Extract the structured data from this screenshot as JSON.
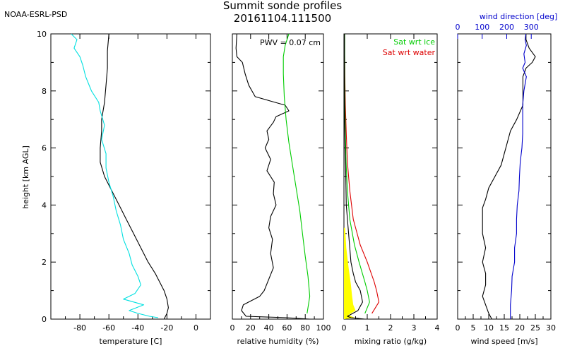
{
  "header": {
    "org": "NOAA-ESRL-PSD",
    "title_line1": "Summit sonde profiles",
    "title_line2": "20161104.111500"
  },
  "colors": {
    "axis": "#000000",
    "temperature": "#000000",
    "dewpoint": "#00e0e0",
    "rh": "#000000",
    "rh_ice": "#00cc00",
    "sat_ice": "#00cc00",
    "sat_water": "#dd0000",
    "mixing_ratio": "#000000",
    "ice_band": "#ffff00",
    "wind_speed": "#000000",
    "wind_direction": "#0000cc"
  },
  "chart_data": [
    {
      "type": "line",
      "panel": "temperature",
      "xlabel": "temperature [C]",
      "ylabel": "height [km AGL]",
      "xlim": [
        -100,
        10
      ],
      "ylim": [
        0,
        10
      ],
      "xticks": [
        -80,
        -60,
        -40,
        -20,
        0
      ],
      "yticks": [
        0,
        2,
        4,
        6,
        8,
        10
      ],
      "series": [
        {
          "name": "temperature",
          "x": [
            -22,
            -20,
            -19,
            -20,
            -22,
            -25,
            -28,
            -33,
            -38,
            -43,
            -48,
            -53,
            -58,
            -63,
            -66,
            -66,
            -65,
            -65,
            -63,
            -62,
            -61,
            -61,
            -60
          ],
          "y": [
            0,
            0.2,
            0.4,
            0.7,
            1.0,
            1.3,
            1.6,
            2.0,
            2.5,
            3.0,
            3.5,
            4.0,
            4.5,
            5.0,
            5.5,
            6.0,
            6.6,
            7.0,
            7.6,
            8.2,
            8.8,
            9.4,
            10
          ]
        },
        {
          "name": "dew point",
          "x": [
            -26,
            -32,
            -40,
            -46,
            -36,
            -50,
            -42,
            -38,
            -40,
            -44,
            -46,
            -50,
            -52,
            -55,
            -57,
            -60,
            -62,
            -62,
            -65,
            -63,
            -66,
            -67,
            -72,
            -76,
            -78,
            -80,
            -84,
            -82,
            -86
          ],
          "y": [
            0.05,
            0.1,
            0.2,
            0.3,
            0.5,
            0.7,
            0.9,
            1.2,
            1.5,
            1.9,
            2.3,
            2.8,
            3.3,
            3.8,
            4.3,
            4.8,
            5.3,
            5.8,
            6.3,
            6.8,
            7.3,
            7.6,
            8.0,
            8.5,
            8.9,
            9.2,
            9.5,
            9.8,
            10
          ]
        }
      ]
    },
    {
      "type": "line",
      "panel": "relative humidity",
      "xlabel": "relative humidity (%)",
      "xlim": [
        0,
        100
      ],
      "ylim": [
        0,
        10
      ],
      "xticks": [
        0,
        20,
        40,
        60,
        80,
        100
      ],
      "annotation": "PWV = 0.07 cm",
      "series": [
        {
          "name": "rh wrt water",
          "x": [
            85,
            60,
            15,
            10,
            12,
            30,
            35,
            40,
            45,
            42,
            44,
            40,
            42,
            48,
            45,
            46,
            38,
            42,
            36,
            40,
            38,
            45,
            48,
            55,
            62,
            60,
            58,
            47,
            25,
            18,
            14,
            11,
            5,
            4,
            5
          ],
          "y": [
            0,
            0.05,
            0.1,
            0.3,
            0.5,
            0.8,
            1.0,
            1.4,
            1.8,
            2.3,
            2.8,
            3.2,
            3.6,
            4.0,
            4.4,
            4.8,
            5.2,
            5.6,
            6.0,
            6.3,
            6.6,
            6.9,
            7.1,
            7.2,
            7.3,
            7.4,
            7.5,
            7.6,
            7.8,
            8.2,
            8.6,
            9.0,
            9.2,
            9.5,
            10
          ]
        },
        {
          "name": "rh wrt ice",
          "x": [
            82,
            85,
            83,
            80,
            77,
            74,
            70,
            66,
            62,
            59,
            57,
            56,
            56,
            58,
            60,
            62
          ],
          "y": [
            0.2,
            0.8,
            1.5,
            2.2,
            3.0,
            3.8,
            4.6,
            5.4,
            6.2,
            7.0,
            7.8,
            8.6,
            9.2,
            9.6,
            9.8,
            10
          ]
        }
      ]
    },
    {
      "type": "line",
      "panel": "mixing ratio",
      "xlabel": "mixing ratio (g/kg)",
      "xlim": [
        0,
        4
      ],
      "ylim": [
        0,
        10
      ],
      "xticks": [
        0,
        1,
        2,
        3,
        4
      ],
      "legend": [
        "Sat wrt ice",
        "Sat wrt water"
      ],
      "series": [
        {
          "name": "Sat wrt water",
          "x": [
            1.2,
            1.5,
            1.4,
            1.3,
            1.0,
            0.7,
            0.4,
            0.25,
            0.15,
            0.1,
            0.06,
            0.04,
            0.03,
            0.03
          ],
          "y": [
            0.2,
            0.6,
            1.0,
            1.3,
            2.0,
            2.6,
            3.5,
            4.5,
            5.5,
            6.5,
            7.5,
            8.5,
            9.3,
            10
          ]
        },
        {
          "name": "Sat wrt ice",
          "x": [
            0.9,
            1.1,
            1.0,
            0.9,
            0.65,
            0.45,
            0.25,
            0.15,
            0.09,
            0.06,
            0.04,
            0.03,
            0.03,
            0.03
          ],
          "y": [
            0.2,
            0.6,
            1.0,
            1.3,
            2.0,
            2.6,
            3.5,
            4.5,
            5.5,
            6.5,
            7.5,
            8.5,
            9.3,
            10
          ]
        },
        {
          "name": "mixing ratio",
          "x": [
            0.9,
            0.3,
            0.15,
            0.6,
            0.8,
            0.7,
            0.5,
            0.4,
            0.3,
            0.2,
            0.1,
            0.08,
            0.05,
            0.03,
            0.02,
            0.02,
            0.02
          ],
          "y": [
            0,
            0.05,
            0.1,
            0.3,
            0.6,
            1.0,
            1.3,
            1.6,
            2.0,
            3.0,
            4.0,
            5.0,
            6.0,
            7.0,
            8.0,
            9.0,
            10
          ]
        }
      ]
    },
    {
      "type": "line",
      "panel": "wind",
      "xlabel": "wind speed [m/s]",
      "x2label": "wind direction [deg]",
      "xlim": [
        0,
        30
      ],
      "x2lim": [
        0,
        380
      ],
      "ylim": [
        0,
        10
      ],
      "xticks": [
        0,
        5,
        10,
        15,
        20,
        25,
        30
      ],
      "x2ticks": [
        0,
        100,
        200,
        300
      ],
      "series": [
        {
          "name": "wind speed",
          "x": [
            11,
            10,
            9,
            8,
            9,
            9,
            8,
            9,
            8,
            8,
            8,
            8,
            9,
            10,
            12,
            14,
            15,
            16,
            17,
            19,
            21,
            21,
            21,
            22,
            24,
            25,
            23,
            22,
            22
          ],
          "y": [
            0,
            0.2,
            0.5,
            0.8,
            1.2,
            1.6,
            2.0,
            2.5,
            3.0,
            3.3,
            3.6,
            3.9,
            4.2,
            4.6,
            5.0,
            5.4,
            5.8,
            6.2,
            6.6,
            7.0,
            7.5,
            8.0,
            8.5,
            8.8,
            9.0,
            9.2,
            9.5,
            9.8,
            10
          ]
        },
        {
          "name": "wind direction",
          "x": [
            215,
            215,
            220,
            222,
            232,
            232,
            240,
            240,
            243,
            250,
            252,
            255,
            262,
            265,
            265,
            265,
            270,
            280,
            265,
            275,
            270,
            280,
            275,
            278
          ],
          "y": [
            0,
            0.5,
            1.0,
            1.5,
            2.0,
            2.5,
            3.0,
            3.5,
            4.0,
            4.5,
            5.0,
            5.5,
            6.0,
            6.5,
            7.0,
            7.5,
            8.0,
            8.5,
            8.8,
            9.0,
            9.3,
            9.6,
            9.8,
            10
          ]
        }
      ]
    }
  ]
}
